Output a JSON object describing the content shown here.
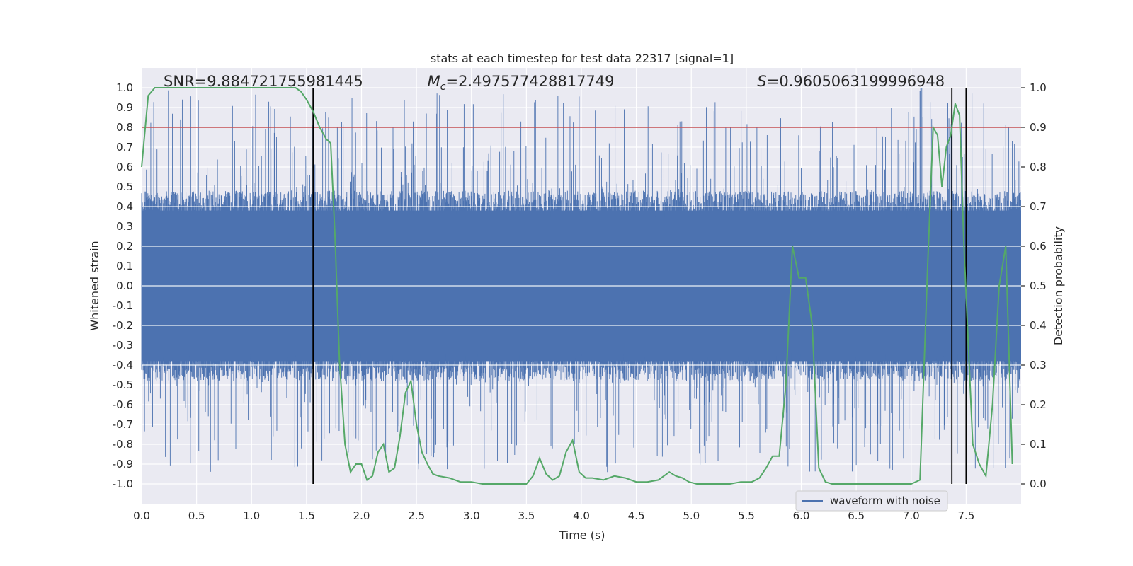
{
  "chart_data": {
    "type": "line",
    "title": "stats at each timestep for test data 22317 [signal=1]",
    "xlabel": "Time (s)",
    "ylabel": "Whitened strain",
    "ylabel_right": "Detection probability",
    "xlim": [
      0.0,
      8.0
    ],
    "ylim": [
      -1.1,
      1.1
    ],
    "ylim_right": [
      -0.05,
      1.05
    ],
    "x_ticks": [
      "0.0",
      "0.5",
      "1.0",
      "1.5",
      "2.0",
      "2.5",
      "3.0",
      "3.5",
      "4.0",
      "4.5",
      "5.0",
      "5.5",
      "6.0",
      "6.5",
      "7.0",
      "7.5"
    ],
    "y_ticks": [
      "-1.0",
      "-0.9",
      "-0.8",
      "-0.7",
      "-0.6",
      "-0.5",
      "-0.4",
      "-0.3",
      "-0.2",
      "-0.1",
      "0.0",
      "0.1",
      "0.2",
      "0.3",
      "0.4",
      "0.5",
      "0.6",
      "0.7",
      "0.8",
      "0.9",
      "1.0"
    ],
    "y_ticks_right": [
      "0.0",
      "0.1",
      "0.2",
      "0.3",
      "0.4",
      "0.5",
      "0.6",
      "0.7",
      "0.8",
      "0.9",
      "1.0"
    ],
    "grid": true,
    "threshold": {
      "value": 0.9,
      "axis": "right",
      "color": "#c44e52"
    },
    "vertical_lines": [
      1.56,
      7.37,
      7.5
    ],
    "annotations": [
      {
        "text": "SNR=9.884721755981445",
        "x": 0.2
      },
      {
        "text": "=2.497577428817749",
        "x": 2.6,
        "prefix": "M",
        "sub": "c"
      },
      {
        "text": "=0.9605063199996948",
        "x": 5.6,
        "prefix": "S",
        "sub": ""
      }
    ],
    "legend": {
      "position": "bottom-right",
      "entries": [
        "waveform with noise"
      ]
    },
    "series": [
      {
        "name": "waveform with noise",
        "color": "#4c72b0",
        "axis": "left",
        "envelope": {
          "typical_amplitude": 0.4,
          "peak_amplitude": 1.0,
          "duration_s": 8.0,
          "sample_rate_hz": 2048
        }
      },
      {
        "color": "#55a868",
        "axis": "right",
        "x": [
          0.0,
          0.06,
          0.12,
          0.2,
          0.3,
          0.4,
          0.5,
          0.6,
          0.7,
          0.8,
          0.9,
          1.0,
          1.1,
          1.2,
          1.3,
          1.4,
          1.45,
          1.5,
          1.56,
          1.62,
          1.68,
          1.72,
          1.76,
          1.8,
          1.85,
          1.9,
          1.95,
          2.0,
          2.05,
          2.1,
          2.15,
          2.2,
          2.25,
          2.3,
          2.35,
          2.4,
          2.45,
          2.5,
          2.55,
          2.6,
          2.65,
          2.7,
          2.8,
          2.9,
          3.0,
          3.1,
          3.2,
          3.3,
          3.4,
          3.5,
          3.56,
          3.62,
          3.68,
          3.74,
          3.8,
          3.86,
          3.92,
          3.98,
          4.04,
          4.1,
          4.2,
          4.3,
          4.4,
          4.5,
          4.6,
          4.7,
          4.8,
          4.86,
          4.92,
          4.98,
          5.05,
          5.15,
          5.25,
          5.35,
          5.45,
          5.55,
          5.62,
          5.68,
          5.74,
          5.8,
          5.86,
          5.92,
          5.98,
          6.04,
          6.1,
          6.16,
          6.22,
          6.28,
          6.4,
          6.6,
          6.8,
          7.0,
          7.08,
          7.15,
          7.2,
          7.24,
          7.28,
          7.32,
          7.36,
          7.4,
          7.44,
          7.48,
          7.52,
          7.56,
          7.62,
          7.68,
          7.74,
          7.8,
          7.86,
          7.92
        ],
        "y": [
          0.8,
          0.98,
          1.0,
          1.0,
          1.0,
          1.0,
          1.0,
          1.0,
          1.0,
          1.0,
          1.0,
          1.0,
          1.0,
          1.0,
          1.0,
          1.0,
          0.99,
          0.97,
          0.94,
          0.9,
          0.87,
          0.86,
          0.62,
          0.31,
          0.1,
          0.03,
          0.05,
          0.05,
          0.01,
          0.02,
          0.08,
          0.1,
          0.03,
          0.04,
          0.12,
          0.23,
          0.26,
          0.15,
          0.08,
          0.05,
          0.025,
          0.02,
          0.015,
          0.005,
          0.005,
          0.0,
          0.0,
          0.0,
          0.0,
          0.0,
          0.02,
          0.065,
          0.025,
          0.01,
          0.02,
          0.08,
          0.11,
          0.03,
          0.015,
          0.015,
          0.01,
          0.02,
          0.015,
          0.005,
          0.005,
          0.01,
          0.03,
          0.02,
          0.015,
          0.005,
          0.0,
          0.0,
          0.0,
          0.0,
          0.005,
          0.005,
          0.015,
          0.04,
          0.07,
          0.07,
          0.25,
          0.6,
          0.52,
          0.52,
          0.4,
          0.04,
          0.005,
          0.0,
          0.0,
          0.0,
          0.0,
          0.0,
          0.01,
          0.55,
          0.9,
          0.88,
          0.75,
          0.85,
          0.88,
          0.96,
          0.93,
          0.6,
          0.35,
          0.1,
          0.05,
          0.02,
          0.2,
          0.5,
          0.6,
          0.05
        ]
      }
    ]
  }
}
